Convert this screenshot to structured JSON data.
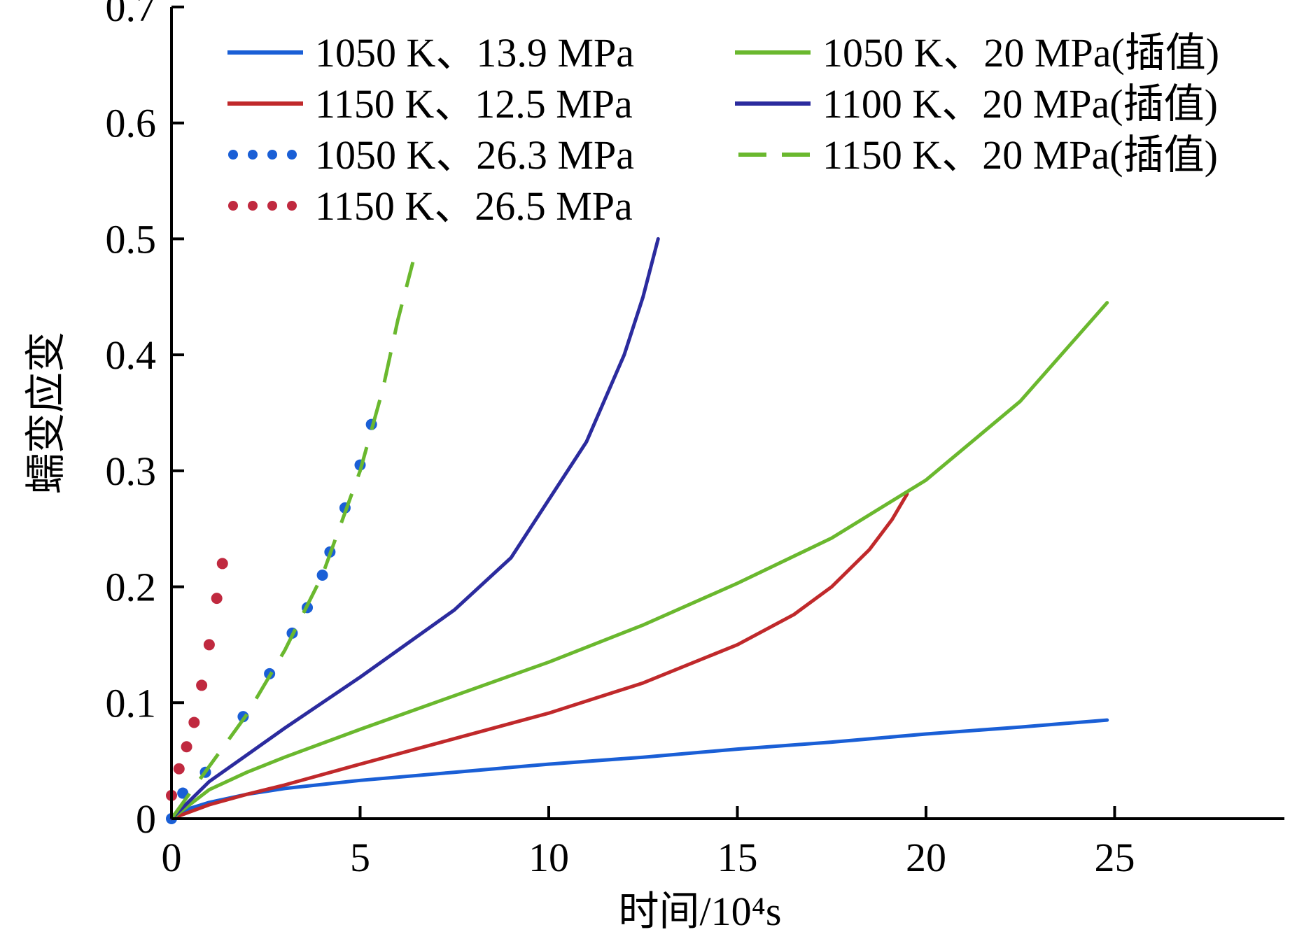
{
  "chart_data": {
    "type": "line",
    "title": "",
    "xlabel": "时间/10⁴s",
    "ylabel": "蠕变应变",
    "xlim": [
      0,
      29.5
    ],
    "ylim": [
      0,
      0.7
    ],
    "xticks": [
      0,
      5,
      10,
      15,
      20,
      25
    ],
    "yticks": [
      0,
      0.1,
      0.2,
      0.3,
      0.4,
      0.5,
      0.6,
      0.7
    ],
    "xtick_labels": [
      "0",
      "5",
      "10",
      "15",
      "20",
      "25"
    ],
    "ytick_labels": [
      "0",
      "0.1",
      "0.2",
      "0.3",
      "0.4",
      "0.5",
      "0.6",
      "0.7"
    ],
    "grid": false,
    "legend_position": "top",
    "series": [
      {
        "name": "1050 K、13.9 MPa",
        "style": "solid",
        "color": "#1a5fd6",
        "x": [
          0,
          0.5,
          1,
          2,
          3,
          5,
          7.5,
          10,
          12.5,
          15,
          17.5,
          20,
          22.5,
          24.8
        ],
        "y": [
          0,
          0.009,
          0.014,
          0.021,
          0.026,
          0.033,
          0.04,
          0.047,
          0.053,
          0.06,
          0.066,
          0.073,
          0.079,
          0.085
        ]
      },
      {
        "name": "1150 K、12.5 MPa",
        "style": "solid",
        "color": "#c0292b",
        "x": [
          0,
          1,
          2,
          3,
          5,
          7.5,
          10,
          12.5,
          15,
          16.5,
          17.5,
          18.5,
          19.1,
          19.5
        ],
        "y": [
          0,
          0.012,
          0.021,
          0.029,
          0.047,
          0.069,
          0.091,
          0.117,
          0.15,
          0.176,
          0.2,
          0.232,
          0.258,
          0.28
        ]
      },
      {
        "name": "1050 K、26.3 MPa",
        "style": "dotted",
        "color": "#1a5fd6",
        "x": [
          0,
          0.3,
          0.9,
          1.9,
          2.6,
          3.2,
          3.6,
          4.0,
          4.2,
          4.6,
          5.0,
          5.3
        ],
        "y": [
          0,
          0.022,
          0.04,
          0.088,
          0.125,
          0.16,
          0.182,
          0.21,
          0.23,
          0.268,
          0.305,
          0.34
        ]
      },
      {
        "name": "1150 K、26.5 MPa",
        "style": "dotted",
        "color": "#c0293f",
        "x": [
          0,
          0.2,
          0.4,
          0.6,
          0.8,
          1.0,
          1.2,
          1.35
        ],
        "y": [
          0.02,
          0.043,
          0.062,
          0.083,
          0.115,
          0.15,
          0.19,
          0.22
        ]
      },
      {
        "name": "1050 K、20 MPa(插值)",
        "style": "solid",
        "color": "#6ab82e",
        "x": [
          0,
          1,
          2,
          3,
          5,
          7.5,
          10,
          12.5,
          15,
          17.5,
          20,
          22.5,
          24.8
        ],
        "y": [
          0,
          0.025,
          0.04,
          0.053,
          0.077,
          0.106,
          0.135,
          0.167,
          0.203,
          0.242,
          0.292,
          0.36,
          0.445
        ]
      },
      {
        "name": "1100 K、20 MPa(插值)",
        "style": "solid",
        "color": "#2b2b9e",
        "x": [
          0,
          1,
          2,
          3,
          5,
          7.5,
          9,
          10,
          11,
          12,
          12.5,
          12.9
        ],
        "y": [
          0,
          0.032,
          0.055,
          0.078,
          0.122,
          0.18,
          0.225,
          0.275,
          0.325,
          0.4,
          0.45,
          0.5
        ]
      },
      {
        "name": "1150 K、20 MPa(插值)",
        "style": "dashed",
        "color": "#6ab82e",
        "x": [
          0,
          1,
          2,
          3,
          4,
          5,
          5.6,
          6.0,
          6.4
        ],
        "y": [
          0,
          0.045,
          0.09,
          0.145,
          0.21,
          0.3,
          0.37,
          0.43,
          0.48
        ]
      }
    ]
  }
}
